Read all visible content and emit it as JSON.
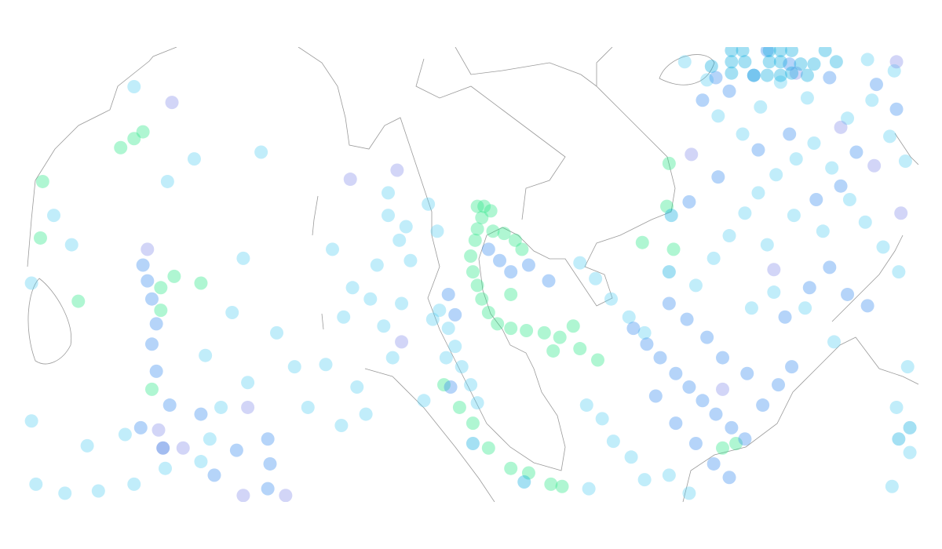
{
  "map": {
    "series": [
      {
        "color": "#2ee88a",
        "points": [
          [
            100.0,
            12.9
          ],
          [
            100.3,
            12.9
          ],
          [
            100.6,
            12.7
          ],
          [
            100.2,
            12.4
          ],
          [
            100.0,
            11.9
          ],
          [
            99.9,
            11.4
          ],
          [
            100.7,
            11.8
          ],
          [
            101.2,
            11.7
          ],
          [
            101.7,
            11.4
          ],
          [
            102.0,
            11.0
          ],
          [
            99.7,
            10.7
          ],
          [
            99.8,
            10.0
          ],
          [
            100.0,
            9.4
          ],
          [
            100.2,
            8.8
          ],
          [
            100.5,
            8.2
          ],
          [
            100.9,
            7.7
          ],
          [
            101.5,
            7.5
          ],
          [
            102.2,
            7.4
          ],
          [
            103.0,
            7.3
          ],
          [
            103.7,
            7.1
          ],
          [
            104.3,
            7.6
          ],
          [
            101.5,
            9.0
          ],
          [
            107.4,
            11.3
          ],
          [
            108.6,
            14.8
          ],
          [
            108.8,
            11.0
          ],
          [
            98.5,
            5.0
          ],
          [
            99.2,
            4.0
          ],
          [
            99.8,
            3.3
          ],
          [
            100.5,
            2.2
          ],
          [
            101.5,
            1.3
          ],
          [
            102.3,
            1.1
          ],
          [
            103.3,
            0.6
          ],
          [
            103.8,
            0.5
          ],
          [
            111.0,
            2.2
          ],
          [
            111.6,
            2.4
          ],
          [
            82.1,
            8.7
          ],
          [
            80.5,
            14.0
          ],
          [
            80.4,
            11.5
          ],
          [
            84.6,
            15.9
          ],
          [
            84.0,
            15.5
          ],
          [
            85.0,
            16.2
          ],
          [
            85.8,
            9.3
          ],
          [
            85.8,
            8.3
          ],
          [
            85.4,
            4.8
          ],
          [
            86.4,
            9.8
          ],
          [
            87.6,
            9.5
          ],
          [
            108.5,
            12.9
          ],
          [
            104.6,
            6.6
          ],
          [
            105.4,
            6.1
          ],
          [
            103.4,
            6.5
          ]
        ]
      },
      {
        "color": "#5cd0f2",
        "points": [
          [
            98.3,
            8.3
          ],
          [
            98.7,
            7.5
          ],
          [
            99.0,
            6.7
          ],
          [
            99.3,
            5.8
          ],
          [
            99.7,
            5.0
          ],
          [
            100.0,
            4.2
          ],
          [
            98.6,
            6.2
          ],
          [
            98.0,
            7.9
          ],
          [
            97.6,
            4.3
          ],
          [
            96.0,
            13.5
          ],
          [
            96.0,
            12.5
          ],
          [
            96.5,
            11.4
          ],
          [
            97.0,
            10.5
          ],
          [
            96.8,
            12.0
          ],
          [
            97.8,
            13.0
          ],
          [
            98.2,
            11.8
          ],
          [
            95.5,
            10.3
          ],
          [
            95.2,
            8.8
          ],
          [
            95.8,
            7.6
          ],
          [
            96.6,
            8.6
          ],
          [
            96.2,
            6.2
          ],
          [
            94.4,
            9.3
          ],
          [
            93.5,
            11.0
          ],
          [
            94.0,
            8.0
          ],
          [
            93.2,
            5.9
          ],
          [
            94.6,
            4.9
          ],
          [
            95.0,
            3.7
          ],
          [
            93.9,
            3.2
          ],
          [
            92.4,
            4.0
          ],
          [
            91.8,
            5.8
          ],
          [
            91.0,
            7.3
          ],
          [
            89.7,
            5.1
          ],
          [
            88.5,
            4.0
          ],
          [
            88.0,
            2.6
          ],
          [
            87.6,
            1.6
          ],
          [
            86.0,
            1.3
          ],
          [
            84.6,
            0.6
          ],
          [
            83.0,
            0.3
          ],
          [
            81.5,
            0.2
          ],
          [
            80.2,
            0.6
          ],
          [
            82.5,
            2.3
          ],
          [
            84.2,
            2.8
          ],
          [
            80.0,
            3.4
          ],
          [
            80.0,
            9.5
          ],
          [
            81.0,
            12.5
          ],
          [
            81.8,
            11.2
          ],
          [
            84.6,
            18.2
          ],
          [
            86.1,
            14.0
          ],
          [
            87.3,
            15.0
          ],
          [
            90.3,
            15.3
          ],
          [
            89.5,
            10.6
          ],
          [
            87.8,
            6.3
          ],
          [
            89.0,
            8.2
          ],
          [
            104.6,
            10.4
          ],
          [
            105.3,
            9.7
          ],
          [
            106.0,
            8.8
          ],
          [
            106.8,
            8.0
          ],
          [
            107.5,
            7.3
          ],
          [
            104.9,
            4.1
          ],
          [
            105.6,
            3.5
          ],
          [
            106.1,
            2.5
          ],
          [
            106.9,
            1.8
          ],
          [
            107.5,
            0.8
          ],
          [
            105.0,
            0.4
          ],
          [
            108.6,
            1.0
          ],
          [
            109.5,
            0.2
          ],
          [
            109.8,
            9.4
          ],
          [
            110.6,
            10.6
          ],
          [
            111.3,
            11.6
          ],
          [
            112.0,
            12.6
          ],
          [
            112.6,
            13.5
          ],
          [
            113.4,
            14.3
          ],
          [
            114.3,
            15.0
          ],
          [
            115.1,
            15.7
          ],
          [
            115.9,
            14.6
          ],
          [
            116.7,
            13.2
          ],
          [
            117.4,
            12.2
          ],
          [
            118.2,
            11.1
          ],
          [
            118.9,
            10.0
          ],
          [
            115.5,
            11.8
          ],
          [
            114.2,
            12.5
          ],
          [
            113.0,
            11.2
          ],
          [
            116.6,
            16.8
          ],
          [
            117.7,
            17.6
          ],
          [
            118.5,
            16.0
          ],
          [
            119.2,
            14.9
          ],
          [
            118.7,
            18.9
          ],
          [
            117.5,
            19.4
          ],
          [
            110.3,
            18.5
          ],
          [
            109.3,
            19.3
          ],
          [
            110.8,
            16.9
          ],
          [
            111.9,
            16.1
          ],
          [
            112.7,
            17.3
          ],
          [
            113.6,
            18.4
          ],
          [
            114.8,
            17.7
          ],
          [
            119.3,
            5.8
          ],
          [
            118.8,
            4.0
          ],
          [
            119.4,
            2.0
          ],
          [
            118.6,
            0.5
          ],
          [
            116.0,
            6.9
          ],
          [
            114.7,
            8.4
          ],
          [
            113.3,
            9.1
          ],
          [
            112.3,
            8.4
          ]
        ]
      },
      {
        "color": "#3d8ff0",
        "points": [
          [
            107.0,
            7.5
          ],
          [
            107.6,
            6.8
          ],
          [
            108.2,
            6.2
          ],
          [
            108.9,
            5.5
          ],
          [
            109.5,
            4.9
          ],
          [
            110.1,
            4.3
          ],
          [
            110.7,
            3.7
          ],
          [
            111.4,
            3.1
          ],
          [
            112.0,
            2.6
          ],
          [
            108.0,
            4.5
          ],
          [
            108.9,
            3.3
          ],
          [
            109.8,
            2.4
          ],
          [
            110.6,
            1.5
          ],
          [
            111.3,
            0.9
          ],
          [
            112.8,
            4.1
          ],
          [
            113.5,
            5.0
          ],
          [
            114.1,
            5.8
          ],
          [
            112.1,
            5.5
          ],
          [
            111.0,
            6.2
          ],
          [
            110.3,
            7.1
          ],
          [
            109.4,
            7.9
          ],
          [
            108.6,
            8.6
          ],
          [
            113.8,
            8.0
          ],
          [
            114.9,
            9.3
          ],
          [
            115.8,
            10.2
          ],
          [
            116.6,
            9.0
          ],
          [
            117.5,
            8.5
          ],
          [
            116.3,
            13.8
          ],
          [
            117.0,
            15.3
          ],
          [
            115.2,
            13.2
          ],
          [
            114.0,
            16.1
          ],
          [
            112.6,
            15.4
          ],
          [
            110.8,
            14.2
          ],
          [
            109.5,
            13.1
          ],
          [
            110.1,
            17.6
          ],
          [
            111.3,
            18.0
          ],
          [
            112.4,
            18.7
          ],
          [
            114.0,
            19.2
          ],
          [
            115.8,
            18.6
          ],
          [
            117.9,
            18.3
          ],
          [
            118.8,
            17.2
          ],
          [
            85.0,
            10.3
          ],
          [
            85.2,
            9.6
          ],
          [
            85.4,
            8.8
          ],
          [
            85.6,
            7.7
          ],
          [
            85.4,
            6.8
          ],
          [
            85.6,
            5.6
          ],
          [
            86.2,
            4.1
          ],
          [
            84.9,
            3.1
          ],
          [
            90.6,
            2.6
          ],
          [
            90.7,
            1.5
          ],
          [
            90.6,
            0.4
          ],
          [
            89.2,
            2.1
          ],
          [
            88.2,
            1.0
          ],
          [
            87.6,
            3.7
          ],
          [
            101.5,
            10.0
          ],
          [
            101.0,
            10.5
          ],
          [
            100.5,
            11.0
          ],
          [
            102.3,
            10.3
          ],
          [
            103.2,
            9.6
          ],
          [
            99.0,
            8.1
          ],
          [
            98.7,
            9.0
          ],
          [
            98.8,
            4.9
          ],
          [
            110.7,
            18.6
          ],
          [
            113.0,
            19.8
          ]
        ]
      },
      {
        "color": "#8a90ea",
        "points": [
          [
            86.3,
            17.5
          ],
          [
            94.3,
            14.1
          ],
          [
            96.4,
            14.5
          ],
          [
            96.6,
            6.9
          ],
          [
            89.7,
            4.0
          ],
          [
            85.7,
            3.0
          ],
          [
            86.8,
            2.2
          ],
          [
            85.2,
            11.0
          ],
          [
            114.3,
            18.8
          ],
          [
            118.8,
            19.3
          ],
          [
            116.3,
            16.4
          ],
          [
            113.3,
            10.1
          ],
          [
            119.0,
            12.6
          ],
          [
            117.8,
            14.7
          ],
          [
            109.6,
            15.2
          ],
          [
            111.0,
            4.8
          ],
          [
            89.5,
            0.1
          ],
          [
            91.4,
            0.1
          ]
        ]
      },
      {
        "color": "#10aee0",
        "points": [
          [
            111.4,
            19.8
          ],
          [
            111.9,
            19.8
          ],
          [
            113.1,
            19.8
          ],
          [
            113.6,
            19.8
          ],
          [
            114.1,
            19.8
          ],
          [
            115.6,
            19.8
          ],
          [
            111.4,
            19.3
          ],
          [
            112.0,
            19.3
          ],
          [
            113.1,
            19.3
          ],
          [
            113.6,
            19.3
          ],
          [
            114.5,
            19.2
          ],
          [
            115.1,
            19.2
          ],
          [
            111.4,
            18.8
          ],
          [
            112.4,
            18.7
          ],
          [
            113.0,
            18.7
          ],
          [
            113.6,
            18.7
          ],
          [
            114.1,
            18.8
          ],
          [
            114.8,
            18.7
          ],
          [
            116.1,
            19.3
          ],
          [
            110.5,
            19.1
          ],
          [
            108.7,
            12.5
          ],
          [
            119.4,
            3.1
          ],
          [
            118.9,
            2.6
          ],
          [
            108.6,
            10.0
          ],
          [
            99.8,
            2.4
          ],
          [
            102.1,
            0.7
          ]
        ]
      },
      {
        "color": "#0a4fd8",
        "points": [
          [
            85.9,
            2.2
          ]
        ]
      }
    ]
  }
}
